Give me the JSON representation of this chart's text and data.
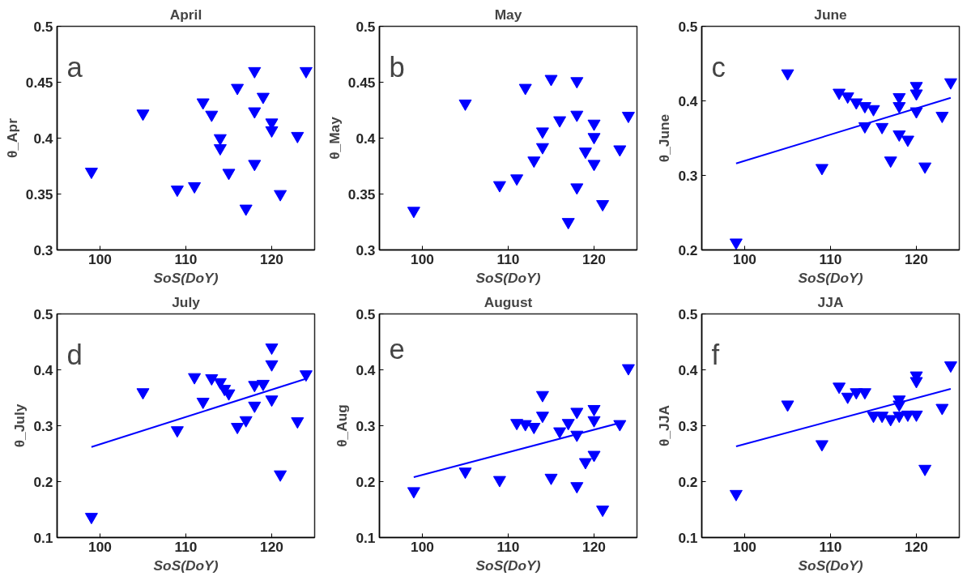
{
  "chart_data": [
    {
      "type": "scatter",
      "title": "April",
      "xlabel": "SoS(DoY)",
      "ylabel": "θ_Apr",
      "annotations": [
        "a"
      ],
      "xlim": [
        95,
        125
      ],
      "xticks": [
        100,
        110,
        120
      ],
      "ylim": [
        0.3,
        0.5
      ],
      "yticks": [
        0.3,
        0.35,
        0.4,
        0.45,
        0.5
      ],
      "grid": false,
      "x": [
        99,
        105,
        109,
        111,
        112,
        113,
        114,
        114,
        115,
        116,
        117,
        118,
        118,
        118,
        119,
        120,
        120,
        121,
        123,
        124
      ],
      "series": [
        {
          "color": "#0000ff",
          "marker": "triangle",
          "values": [
            0.37,
            0.422,
            0.354,
            0.357,
            0.432,
            0.421,
            0.4,
            0.391,
            0.369,
            0.445,
            0.337,
            0.46,
            0.424,
            0.377,
            0.437,
            0.414,
            0.407,
            0.35,
            0.402,
            0.46
          ]
        }
      ]
    },
    {
      "type": "scatter",
      "title": "May",
      "xlabel": "SoS(DoY)",
      "ylabel": "θ_May",
      "annotations": [
        "b"
      ],
      "xlim": [
        95,
        125
      ],
      "xticks": [
        100,
        110,
        120
      ],
      "ylim": [
        0.3,
        0.5
      ],
      "yticks": [
        0.3,
        0.35,
        0.4,
        0.45,
        0.5
      ],
      "grid": false,
      "x": [
        99,
        105,
        109,
        111,
        112,
        113,
        114,
        114,
        115,
        116,
        117,
        118,
        118,
        118,
        119,
        120,
        120,
        120,
        121,
        123,
        124
      ],
      "series": [
        {
          "color": "#0000ff",
          "marker": "triangle",
          "values": [
            0.335,
            0.431,
            0.358,
            0.364,
            0.445,
            0.38,
            0.392,
            0.406,
            0.453,
            0.416,
            0.325,
            0.451,
            0.421,
            0.356,
            0.388,
            0.413,
            0.401,
            0.377,
            0.341,
            0.39,
            0.42
          ]
        }
      ]
    },
    {
      "type": "scatter",
      "title": "June",
      "xlabel": "SoS(DoY)",
      "ylabel": "θ_June",
      "annotations": [
        "c"
      ],
      "xlim": [
        95,
        125
      ],
      "xticks": [
        100,
        110,
        120
      ],
      "ylim": [
        0.2,
        0.5
      ],
      "yticks": [
        0.2,
        0.3,
        0.4,
        0.5
      ],
      "grid": false,
      "x": [
        99,
        105,
        109,
        111,
        112,
        113,
        114,
        114,
        115,
        116,
        117,
        118,
        118,
        118,
        119,
        120,
        120,
        120,
        121,
        123,
        124
      ],
      "series": [
        {
          "color": "#0000ff",
          "marker": "triangle",
          "values": [
            0.21,
            0.437,
            0.31,
            0.411,
            0.406,
            0.398,
            0.393,
            0.366,
            0.389,
            0.365,
            0.32,
            0.405,
            0.393,
            0.355,
            0.348,
            0.42,
            0.41,
            0.386,
            0.312,
            0.38,
            0.425
          ]
        },
        {
          "type": "line",
          "marker": "none",
          "color": "#0000ff",
          "x": [
            99,
            124
          ],
          "values": [
            0.316,
            0.404
          ]
        }
      ]
    },
    {
      "type": "scatter",
      "title": "July",
      "xlabel": "SoS(DoY)",
      "ylabel": "θ_July",
      "annotations": [
        "d"
      ],
      "xlim": [
        95,
        125
      ],
      "xticks": [
        100,
        110,
        120
      ],
      "ylim": [
        0.1,
        0.5
      ],
      "yticks": [
        0.1,
        0.2,
        0.3,
        0.4,
        0.5
      ],
      "grid": false,
      "x": [
        99,
        105,
        109,
        111,
        112,
        113,
        114,
        114.5,
        115,
        116,
        117,
        118,
        118,
        119,
        120,
        120,
        120,
        121,
        123,
        124
      ],
      "series": [
        {
          "color": "#0000ff",
          "marker": "triangle",
          "values": [
            0.137,
            0.36,
            0.292,
            0.387,
            0.343,
            0.385,
            0.378,
            0.366,
            0.358,
            0.298,
            0.31,
            0.373,
            0.336,
            0.375,
            0.44,
            0.41,
            0.347,
            0.213,
            0.308,
            0.392
          ]
        },
        {
          "type": "line",
          "marker": "none",
          "color": "#0000ff",
          "x": [
            99,
            124
          ],
          "values": [
            0.262,
            0.384
          ]
        }
      ]
    },
    {
      "type": "scatter",
      "title": "August",
      "xlabel": "SoS(DoY)",
      "ylabel": "θ_Aug",
      "annotations": [
        "e"
      ],
      "xlim": [
        95,
        125
      ],
      "xticks": [
        100,
        110,
        120
      ],
      "ylim": [
        0.1,
        0.5
      ],
      "yticks": [
        0.1,
        0.2,
        0.3,
        0.4,
        0.5
      ],
      "grid": false,
      "x": [
        99,
        105,
        109,
        111,
        112,
        113,
        114,
        114,
        115,
        116,
        117,
        118,
        118,
        118,
        119,
        120,
        120,
        120,
        121,
        123,
        124
      ],
      "series": [
        {
          "color": "#0000ff",
          "marker": "triangle",
          "values": [
            0.183,
            0.218,
            0.203,
            0.305,
            0.303,
            0.298,
            0.355,
            0.318,
            0.207,
            0.29,
            0.305,
            0.325,
            0.284,
            0.192,
            0.235,
            0.33,
            0.31,
            0.248,
            0.15,
            0.303,
            0.403
          ]
        },
        {
          "type": "line",
          "marker": "none",
          "color": "#0000ff",
          "x": [
            99,
            123
          ],
          "values": [
            0.208,
            0.305
          ]
        }
      ]
    },
    {
      "type": "scatter",
      "title": "JJA",
      "xlabel": "SoS(DoY)",
      "ylabel": "θ_JJA",
      "annotations": [
        "f"
      ],
      "xlim": [
        95,
        125
      ],
      "xticks": [
        100,
        110,
        120
      ],
      "ylim": [
        0.1,
        0.5
      ],
      "yticks": [
        0.1,
        0.2,
        0.3,
        0.4,
        0.5
      ],
      "grid": false,
      "x": [
        99,
        105,
        109,
        111,
        112,
        113,
        114,
        115,
        116,
        117,
        118,
        118,
        118,
        119,
        120,
        120,
        120,
        121,
        123,
        124
      ],
      "series": [
        {
          "color": "#0000ff",
          "marker": "triangle",
          "values": [
            0.178,
            0.338,
            0.267,
            0.37,
            0.352,
            0.36,
            0.36,
            0.318,
            0.318,
            0.312,
            0.347,
            0.338,
            0.318,
            0.32,
            0.39,
            0.38,
            0.32,
            0.223,
            0.332,
            0.408
          ]
        },
        {
          "type": "line",
          "marker": "none",
          "color": "#0000ff",
          "x": [
            99,
            124
          ],
          "values": [
            0.263,
            0.366
          ]
        }
      ]
    }
  ]
}
